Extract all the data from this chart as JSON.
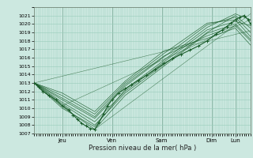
{
  "bg_color": "#cce8e0",
  "grid_color": "#99ccbb",
  "line_color": "#1a5c2a",
  "ylim": [
    1007,
    1022
  ],
  "yticks": [
    1007,
    1008,
    1009,
    1010,
    1011,
    1012,
    1013,
    1014,
    1015,
    1016,
    1017,
    1018,
    1019,
    1020,
    1021
  ],
  "xlabel": "Pression niveau de la mer( hPa )",
  "day_labels": [
    "Jeu",
    "Ven",
    "Sam",
    "Dim",
    "Lun"
  ],
  "day_positions": [
    0.13,
    0.36,
    0.59,
    0.82,
    0.93
  ],
  "main_line": [
    [
      0.0,
      1013.0
    ],
    [
      0.02,
      1012.5
    ],
    [
      0.04,
      1012.0
    ],
    [
      0.07,
      1011.5
    ],
    [
      0.1,
      1011.0
    ],
    [
      0.13,
      1010.3
    ],
    [
      0.16,
      1009.8
    ],
    [
      0.18,
      1009.2
    ],
    [
      0.2,
      1008.7
    ],
    [
      0.22,
      1008.2
    ],
    [
      0.24,
      1007.9
    ],
    [
      0.26,
      1007.6
    ],
    [
      0.28,
      1007.5
    ],
    [
      0.3,
      1008.3
    ],
    [
      0.32,
      1009.3
    ],
    [
      0.34,
      1010.3
    ],
    [
      0.36,
      1011.0
    ],
    [
      0.39,
      1011.8
    ],
    [
      0.42,
      1012.3
    ],
    [
      0.45,
      1012.8
    ],
    [
      0.48,
      1013.3
    ],
    [
      0.52,
      1013.9
    ],
    [
      0.56,
      1014.6
    ],
    [
      0.6,
      1015.3
    ],
    [
      0.64,
      1015.9
    ],
    [
      0.68,
      1016.4
    ],
    [
      0.72,
      1016.9
    ],
    [
      0.76,
      1017.4
    ],
    [
      0.8,
      1018.0
    ],
    [
      0.84,
      1018.8
    ],
    [
      0.87,
      1019.3
    ],
    [
      0.89,
      1019.7
    ],
    [
      0.91,
      1020.1
    ],
    [
      0.93,
      1020.5
    ],
    [
      0.95,
      1020.8
    ],
    [
      0.97,
      1021.0
    ],
    [
      0.99,
      1020.5
    ],
    [
      1.0,
      1020.0
    ]
  ],
  "ensemble_lines": [
    [
      [
        0.0,
        1013.0
      ],
      [
        0.13,
        1010.5
      ],
      [
        0.28,
        1008.0
      ],
      [
        0.42,
        1011.8
      ],
      [
        0.6,
        1015.2
      ],
      [
        0.8,
        1019.0
      ],
      [
        0.93,
        1021.0
      ],
      [
        1.0,
        1019.5
      ]
    ],
    [
      [
        0.0,
        1013.0
      ],
      [
        0.13,
        1010.0
      ],
      [
        0.28,
        1007.8
      ],
      [
        0.42,
        1012.2
      ],
      [
        0.6,
        1015.7
      ],
      [
        0.8,
        1019.6
      ],
      [
        0.93,
        1021.2
      ],
      [
        1.0,
        1020.5
      ]
    ],
    [
      [
        0.0,
        1013.0
      ],
      [
        0.13,
        1011.0
      ],
      [
        0.28,
        1008.8
      ],
      [
        0.42,
        1012.6
      ],
      [
        0.6,
        1016.1
      ],
      [
        0.8,
        1019.9
      ],
      [
        0.93,
        1020.8
      ],
      [
        1.0,
        1019.0
      ]
    ],
    [
      [
        0.0,
        1013.0
      ],
      [
        0.13,
        1011.5
      ],
      [
        0.28,
        1009.3
      ],
      [
        0.42,
        1013.0
      ],
      [
        0.6,
        1016.5
      ],
      [
        0.8,
        1020.1
      ],
      [
        0.93,
        1020.5
      ],
      [
        1.0,
        1018.5
      ]
    ],
    [
      [
        0.0,
        1013.0
      ],
      [
        0.13,
        1010.7
      ],
      [
        0.28,
        1008.4
      ],
      [
        0.42,
        1012.0
      ],
      [
        0.6,
        1015.5
      ],
      [
        0.8,
        1019.3
      ],
      [
        0.93,
        1020.3
      ],
      [
        1.0,
        1019.8
      ]
    ],
    [
      [
        0.0,
        1013.0
      ],
      [
        0.13,
        1011.2
      ],
      [
        0.28,
        1009.0
      ],
      [
        0.42,
        1012.8
      ],
      [
        0.6,
        1016.2
      ],
      [
        0.8,
        1018.6
      ],
      [
        0.93,
        1019.8
      ],
      [
        1.0,
        1018.0
      ]
    ],
    [
      [
        0.0,
        1013.0
      ],
      [
        0.13,
        1010.2
      ],
      [
        0.28,
        1007.5
      ],
      [
        0.42,
        1011.5
      ],
      [
        0.6,
        1015.0
      ],
      [
        0.8,
        1018.9
      ],
      [
        0.93,
        1020.0
      ],
      [
        1.0,
        1018.2
      ]
    ],
    [
      [
        0.0,
        1013.0
      ],
      [
        0.13,
        1011.8
      ],
      [
        0.28,
        1009.6
      ],
      [
        0.42,
        1013.2
      ],
      [
        0.6,
        1016.8
      ],
      [
        0.8,
        1018.3
      ],
      [
        0.93,
        1019.5
      ],
      [
        1.0,
        1017.5
      ]
    ]
  ],
  "trend_lines": [
    [
      [
        0.0,
        1013.0
      ],
      [
        1.0,
        1019.2
      ]
    ],
    [
      [
        0.13,
        1010.3
      ],
      [
        1.0,
        1020.5
      ]
    ],
    [
      [
        0.28,
        1007.5
      ],
      [
        1.0,
        1021.2
      ]
    ]
  ]
}
